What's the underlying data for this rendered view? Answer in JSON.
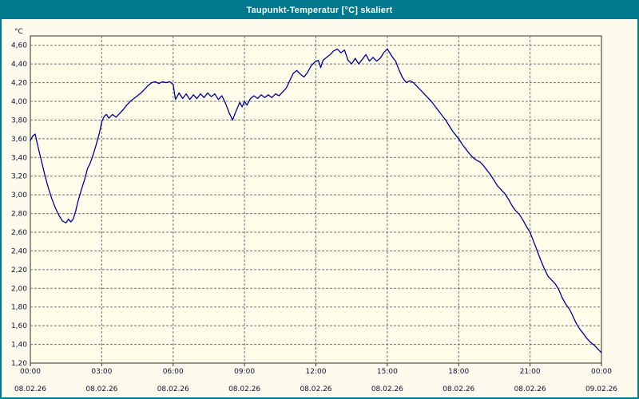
{
  "window": {
    "title": "Taupunkt-Temperatur [°C] skaliert"
  },
  "colors": {
    "titlebar_bg": "#00798f",
    "titlebar_text": "#ffffff",
    "window_border": "#00798f",
    "outer_bg": "#fdfbee",
    "plot_bg": "#fffdea",
    "grid": "#707070",
    "plot_border": "#303030",
    "line": "#000099",
    "tick_text": "#10102e"
  },
  "chart_data": {
    "type": "line",
    "title": "Taupunkt-Temperatur [°C] skaliert",
    "ylabel": "°C",
    "xlabel": "",
    "ylim": [
      1.2,
      4.6
    ],
    "y_plot_max": 4.7,
    "y_tick_step": 0.2,
    "y_tick_labels": [
      "1,20",
      "1,40",
      "1,60",
      "1,80",
      "2,00",
      "2,20",
      "2,40",
      "2,60",
      "2,80",
      "3,00",
      "3,20",
      "3,40",
      "3,60",
      "3,80",
      "4,00",
      "4,20",
      "4,40",
      "4,60"
    ],
    "grid": "dashed",
    "legend": "none",
    "x_axis": {
      "hours_span": 24,
      "tick_hours": [
        0,
        3,
        6,
        9,
        12,
        15,
        18,
        21,
        24
      ],
      "time_labels": [
        "00:00",
        "03:00",
        "06:00",
        "09:00",
        "12:00",
        "15:00",
        "18:00",
        "21:00",
        "00:00"
      ],
      "date_labels": [
        "08.02.26",
        "08.02.26",
        "08.02.26",
        "08.02.26",
        "08.02.26",
        "08.02.26",
        "08.02.26",
        "08.02.26",
        "09.02.26"
      ]
    },
    "series": [
      {
        "name": "Taupunkt-Temperatur",
        "unit": "°C",
        "color": "#000099",
        "points": [
          [
            0,
            3.58
          ],
          [
            0.1,
            3.63
          ],
          [
            0.2,
            3.65
          ],
          [
            0.3,
            3.54
          ],
          [
            0.45,
            3.38
          ],
          [
            0.6,
            3.22
          ],
          [
            0.75,
            3.08
          ],
          [
            0.9,
            2.96
          ],
          [
            1.05,
            2.86
          ],
          [
            1.2,
            2.78
          ],
          [
            1.35,
            2.72
          ],
          [
            1.5,
            2.7
          ],
          [
            1.6,
            2.74
          ],
          [
            1.7,
            2.71
          ],
          [
            1.8,
            2.74
          ],
          [
            1.9,
            2.82
          ],
          [
            2.0,
            2.93
          ],
          [
            2.15,
            3.06
          ],
          [
            2.3,
            3.18
          ],
          [
            2.4,
            3.28
          ],
          [
            2.5,
            3.33
          ],
          [
            2.6,
            3.4
          ],
          [
            2.75,
            3.52
          ],
          [
            2.9,
            3.66
          ],
          [
            3.0,
            3.78
          ],
          [
            3.1,
            3.84
          ],
          [
            3.2,
            3.86
          ],
          [
            3.3,
            3.82
          ],
          [
            3.45,
            3.86
          ],
          [
            3.6,
            3.83
          ],
          [
            3.75,
            3.87
          ],
          [
            3.9,
            3.91
          ],
          [
            4.05,
            3.96
          ],
          [
            4.2,
            4.0
          ],
          [
            4.35,
            4.03
          ],
          [
            4.5,
            4.06
          ],
          [
            4.65,
            4.09
          ],
          [
            4.8,
            4.13
          ],
          [
            4.95,
            4.17
          ],
          [
            5.1,
            4.2
          ],
          [
            5.25,
            4.21
          ],
          [
            5.4,
            4.19
          ],
          [
            5.55,
            4.21
          ],
          [
            5.7,
            4.2
          ],
          [
            5.85,
            4.21
          ],
          [
            6.0,
            4.18
          ],
          [
            6.1,
            4.02
          ],
          [
            6.25,
            4.09
          ],
          [
            6.4,
            4.03
          ],
          [
            6.55,
            4.08
          ],
          [
            6.7,
            4.02
          ],
          [
            6.85,
            4.07
          ],
          [
            7.0,
            4.03
          ],
          [
            7.15,
            4.08
          ],
          [
            7.3,
            4.04
          ],
          [
            7.45,
            4.09
          ],
          [
            7.6,
            4.05
          ],
          [
            7.75,
            4.08
          ],
          [
            7.9,
            4.02
          ],
          [
            8.05,
            4.06
          ],
          [
            8.2,
            3.98
          ],
          [
            8.35,
            3.88
          ],
          [
            8.5,
            3.8
          ],
          [
            8.65,
            3.9
          ],
          [
            8.8,
            3.99
          ],
          [
            8.9,
            3.94
          ],
          [
            9.0,
            4.0
          ],
          [
            9.1,
            3.96
          ],
          [
            9.25,
            4.03
          ],
          [
            9.4,
            4.06
          ],
          [
            9.55,
            4.03
          ],
          [
            9.7,
            4.07
          ],
          [
            9.85,
            4.04
          ],
          [
            10.0,
            4.07
          ],
          [
            10.15,
            4.04
          ],
          [
            10.3,
            4.08
          ],
          [
            10.45,
            4.06
          ],
          [
            10.6,
            4.1
          ],
          [
            10.75,
            4.14
          ],
          [
            10.9,
            4.22
          ],
          [
            11.05,
            4.3
          ],
          [
            11.2,
            4.33
          ],
          [
            11.35,
            4.29
          ],
          [
            11.5,
            4.26
          ],
          [
            11.65,
            4.31
          ],
          [
            11.8,
            4.38
          ],
          [
            11.95,
            4.42
          ],
          [
            12.1,
            4.44
          ],
          [
            12.2,
            4.36
          ],
          [
            12.3,
            4.44
          ],
          [
            12.45,
            4.47
          ],
          [
            12.6,
            4.5
          ],
          [
            12.75,
            4.54
          ],
          [
            12.9,
            4.56
          ],
          [
            13.05,
            4.52
          ],
          [
            13.2,
            4.55
          ],
          [
            13.35,
            4.44
          ],
          [
            13.5,
            4.4
          ],
          [
            13.65,
            4.46
          ],
          [
            13.8,
            4.4
          ],
          [
            13.95,
            4.45
          ],
          [
            14.1,
            4.5
          ],
          [
            14.25,
            4.43
          ],
          [
            14.4,
            4.47
          ],
          [
            14.55,
            4.43
          ],
          [
            14.7,
            4.46
          ],
          [
            14.85,
            4.52
          ],
          [
            15.0,
            4.56
          ],
          [
            15.1,
            4.52
          ],
          [
            15.2,
            4.48
          ],
          [
            15.35,
            4.43
          ],
          [
            15.5,
            4.33
          ],
          [
            15.65,
            4.25
          ],
          [
            15.8,
            4.2
          ],
          [
            15.95,
            4.22
          ],
          [
            16.1,
            4.2
          ],
          [
            16.25,
            4.16
          ],
          [
            16.4,
            4.12
          ],
          [
            16.55,
            4.08
          ],
          [
            16.7,
            4.04
          ],
          [
            16.85,
            4.0
          ],
          [
            17.0,
            3.95
          ],
          [
            17.15,
            3.9
          ],
          [
            17.3,
            3.85
          ],
          [
            17.45,
            3.8
          ],
          [
            17.6,
            3.74
          ],
          [
            17.75,
            3.68
          ],
          [
            17.9,
            3.63
          ],
          [
            18.0,
            3.6
          ],
          [
            18.15,
            3.54
          ],
          [
            18.3,
            3.49
          ],
          [
            18.45,
            3.44
          ],
          [
            18.6,
            3.4
          ],
          [
            18.75,
            3.37
          ],
          [
            18.9,
            3.35
          ],
          [
            19.05,
            3.31
          ],
          [
            19.2,
            3.26
          ],
          [
            19.35,
            3.21
          ],
          [
            19.5,
            3.15
          ],
          [
            19.65,
            3.09
          ],
          [
            19.8,
            3.05
          ],
          [
            19.95,
            3.01
          ],
          [
            20.1,
            2.95
          ],
          [
            20.25,
            2.88
          ],
          [
            20.4,
            2.83
          ],
          [
            20.55,
            2.79
          ],
          [
            20.7,
            2.73
          ],
          [
            20.85,
            2.66
          ],
          [
            21.0,
            2.6
          ],
          [
            21.15,
            2.5
          ],
          [
            21.3,
            2.4
          ],
          [
            21.45,
            2.3
          ],
          [
            21.6,
            2.21
          ],
          [
            21.75,
            2.13
          ],
          [
            21.9,
            2.09
          ],
          [
            22.05,
            2.05
          ],
          [
            22.2,
            1.99
          ],
          [
            22.35,
            1.9
          ],
          [
            22.5,
            1.83
          ],
          [
            22.65,
            1.78
          ],
          [
            22.8,
            1.7
          ],
          [
            22.95,
            1.62
          ],
          [
            23.1,
            1.56
          ],
          [
            23.25,
            1.51
          ],
          [
            23.4,
            1.46
          ],
          [
            23.55,
            1.42
          ],
          [
            23.7,
            1.39
          ],
          [
            23.85,
            1.35
          ],
          [
            24.0,
            1.31
          ]
        ]
      }
    ]
  }
}
